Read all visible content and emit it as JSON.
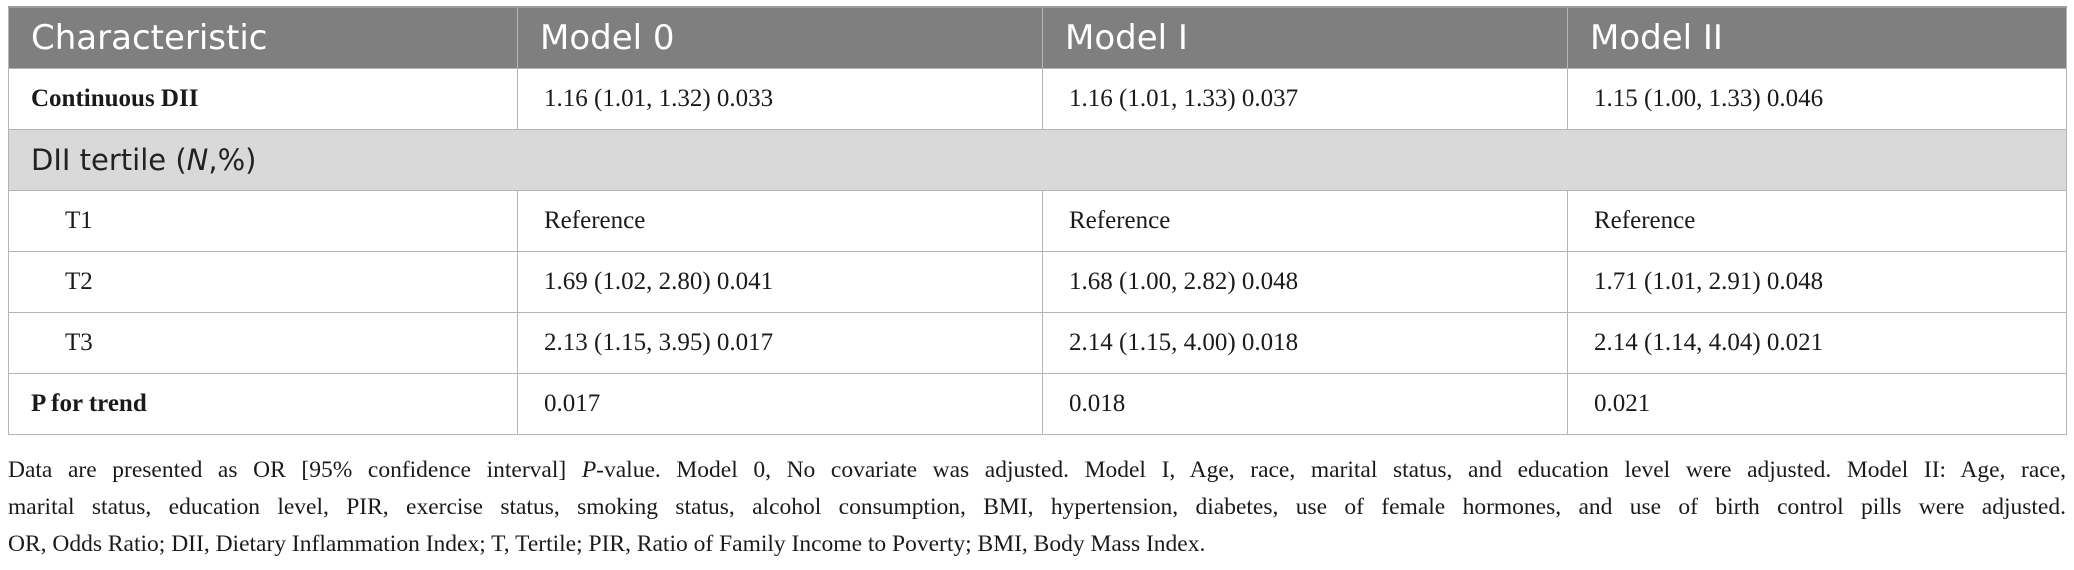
{
  "table": {
    "headers": [
      "Characteristic",
      "Model 0",
      "Model I",
      "Model II"
    ],
    "rows": [
      {
        "label": "Continuous DII",
        "values": [
          "1.16 (1.01, 1.32) 0.033",
          "1.16 (1.01, 1.33) 0.037",
          "1.15 (1.00, 1.33) 0.046"
        ]
      },
      {
        "section_prefix": "DII tertile (",
        "section_italic": "N",
        "section_suffix": ",%)"
      },
      {
        "label": "T1",
        "values": [
          "Reference",
          "Reference",
          "Reference"
        ]
      },
      {
        "label": "T2",
        "values": [
          "1.69 (1.02, 2.80) 0.041",
          "1.68 (1.00, 2.82) 0.048",
          "1.71 (1.01, 2.91) 0.048"
        ]
      },
      {
        "label": "T3",
        "values": [
          "2.13 (1.15, 3.95) 0.017",
          "2.14 (1.15, 4.00) 0.018",
          "2.14 (1.14, 4.04) 0.021"
        ]
      },
      {
        "label": "P for trend",
        "values": [
          "0.017",
          "0.018",
          "0.021"
        ]
      }
    ]
  },
  "footnote": {
    "line1_a": "Data are presented as OR [95% confidence interval] ",
    "line1_italic": "P",
    "line1_b": "-value. Model 0, No covariate was adjusted. Model I, Age, race, marital status, and education level were adjusted. Model II: Age, race,",
    "line2": "marital status, education level, PIR, exercise status, smoking status, alcohol consumption, BMI, hypertension, diabetes, use of female hormones, and use of birth control pills were adjusted.",
    "line3": "OR, Odds Ratio; DII, Dietary Inflammation Index; T, Tertile; PIR, Ratio of Family Income to Poverty; BMI, Body Mass Index."
  }
}
